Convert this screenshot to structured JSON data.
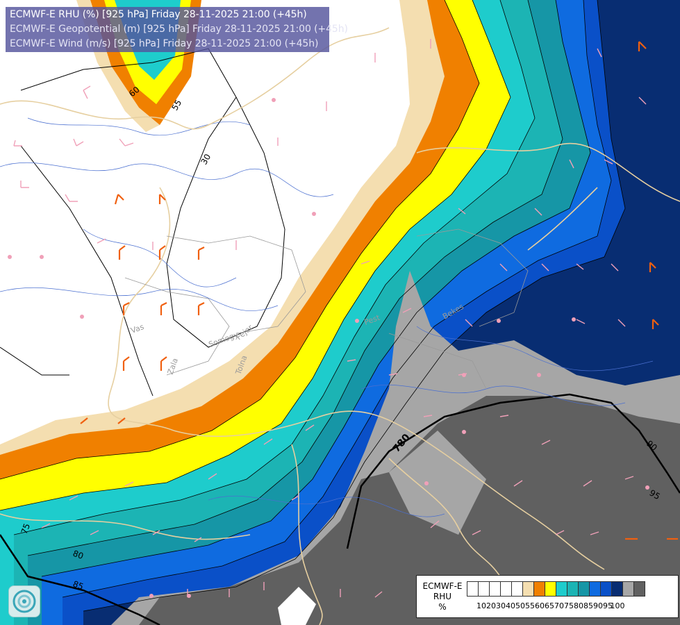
{
  "titles": {
    "line1": "ECMWF-E RHU (%) [925 hPa] Friday 28-11-2025 21:00 (+45h)",
    "line2": "ECMWF-E Geopotential (m) [925 hPa] Friday 28-11-2025 21:00 (+45h)",
    "line3": "ECMWF-E Wind (m/s) [925 hPa] Friday 28-11-2025 21:00 (+45h)"
  },
  "legend": {
    "name_line1": "ECMWF-E",
    "name_line2": "RHU",
    "unit": "%",
    "colors": [
      "#ffffff",
      "#ffffff",
      "#ffffff",
      "#ffffff",
      "#ffffff",
      "#f4deb0",
      "#f08000",
      "#ffff00",
      "#1ecccc",
      "#1cb4b4",
      "#1696a6",
      "#0f6be0",
      "#0a50c8",
      "#082d72",
      "#a6a6a6",
      "#606060"
    ],
    "labels": [
      "10",
      "20",
      "30",
      "40",
      "50",
      "55",
      "60",
      "65",
      "70",
      "75",
      "80",
      "85",
      "90",
      "95",
      "100"
    ]
  },
  "contours": {
    "rhu_labels": [
      "60",
      "55",
      "75",
      "80",
      "85",
      "90",
      "95"
    ],
    "geopotential_labels": [
      "30",
      "780"
    ]
  },
  "regions": [
    "Vas",
    "Zala",
    "Somogy",
    "Tolna",
    "Fejer",
    "Pest",
    "Bekes"
  ]
}
